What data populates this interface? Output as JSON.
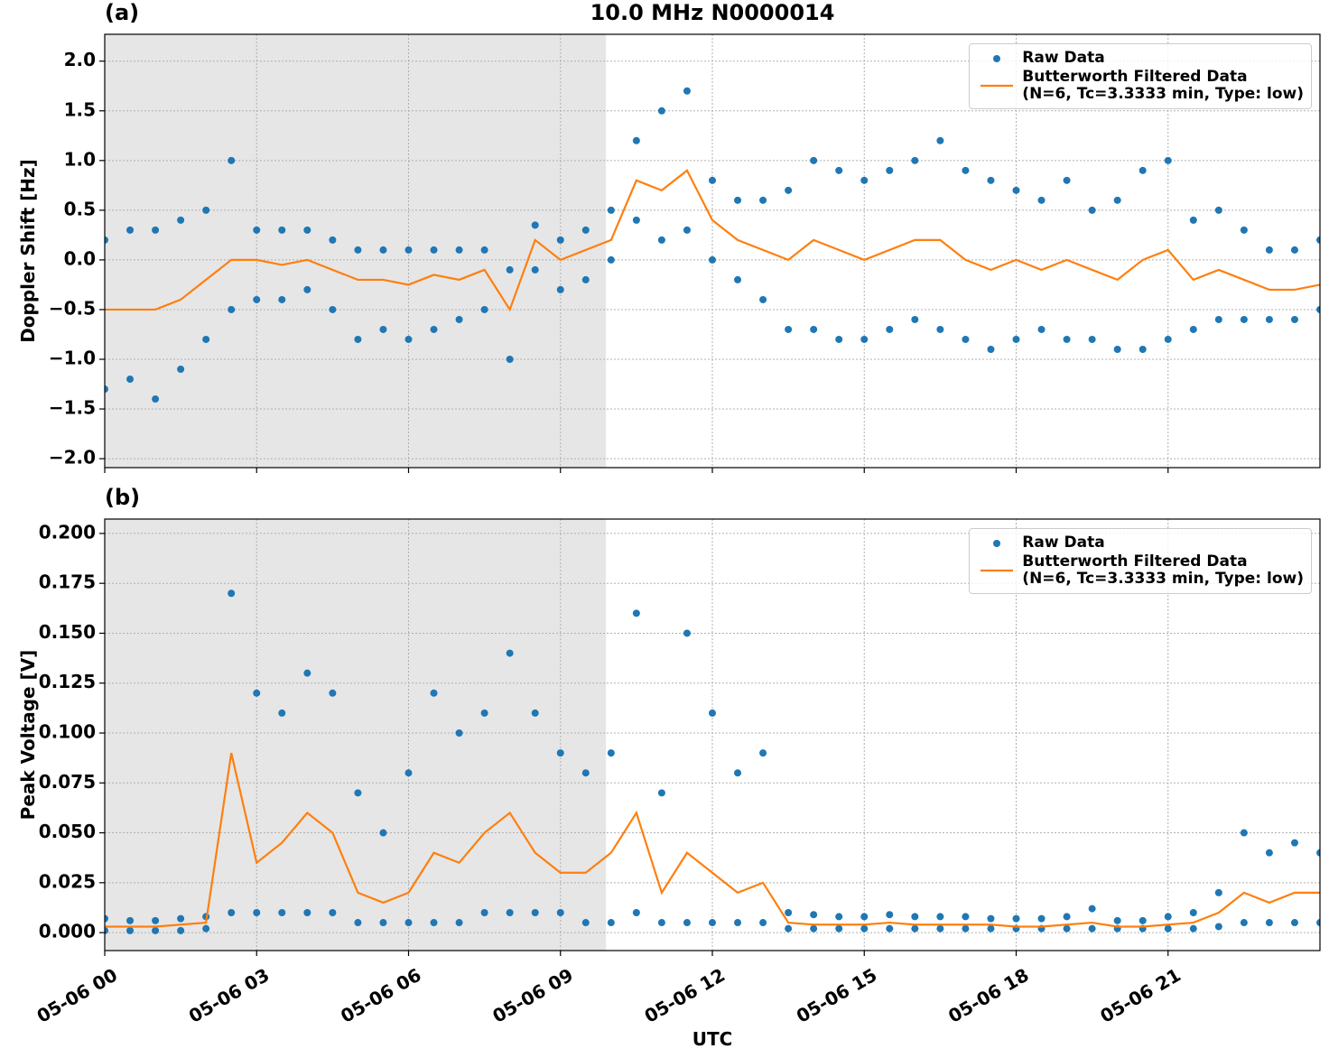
{
  "chart_data": [
    {
      "type": "scatter",
      "title": "10.0 MHz N0000014",
      "panel_label": "(a)",
      "y_label": "Doppler Shift [Hz]",
      "xlim": [
        0,
        24
      ],
      "xticks": [
        0,
        3,
        6,
        9,
        12,
        15,
        18,
        21
      ],
      "ylim": [
        -2.09,
        2.27
      ],
      "yticks": [
        {
          "value": -2.0,
          "label": "−2.0"
        },
        {
          "value": -1.5,
          "label": "−1.5"
        },
        {
          "value": -1.0,
          "label": "−1.0"
        },
        {
          "value": -0.5,
          "label": "−0.5"
        },
        {
          "value": 0.0,
          "label": "0.0"
        },
        {
          "value": 0.5,
          "label": "0.5"
        },
        {
          "value": 1.0,
          "label": "1.0"
        },
        {
          "value": 1.5,
          "label": "1.5"
        },
        {
          "value": 2.0,
          "label": "2.0"
        }
      ],
      "grid": true,
      "legend": "upper right",
      "shaded_span": [
        0,
        9.9
      ],
      "series": [
        {
          "name": "Raw Data",
          "color": "#1f77b4",
          "kind": "points",
          "x": [
            0,
            0,
            0.5,
            0.5,
            1,
            1,
            1.5,
            1.5,
            2,
            2,
            2.5,
            2.5,
            3,
            3,
            3.5,
            3.5,
            4,
            4,
            4.5,
            4.5,
            5,
            5,
            5.5,
            5.5,
            6,
            6,
            6.5,
            6.5,
            7,
            7,
            7.5,
            7.5,
            8,
            8,
            8.5,
            8.5,
            9,
            9,
            9.5,
            9.5,
            10,
            10,
            10.5,
            10.5,
            11,
            11,
            11.5,
            11.5,
            12,
            12,
            12.5,
            12.5,
            13,
            13,
            13.5,
            13.5,
            14,
            14,
            14.5,
            14.5,
            15,
            15,
            15.5,
            15.5,
            16,
            16,
            16.5,
            16.5,
            17,
            17,
            17.5,
            17.5,
            18,
            18,
            18.5,
            18.5,
            19,
            19,
            19.5,
            19.5,
            20,
            20,
            20.5,
            20.5,
            21,
            21,
            21.5,
            21.5,
            22,
            22,
            22.5,
            22.5,
            23,
            23,
            23.5,
            23.5,
            24,
            24
          ],
          "values": [
            0.2,
            -1.3,
            0.3,
            -1.2,
            0.3,
            -1.4,
            0.4,
            -1.1,
            0.5,
            -0.8,
            1.0,
            -0.5,
            0.3,
            -0.4,
            0.3,
            -0.4,
            0.3,
            -0.3,
            0.2,
            -0.5,
            0.1,
            -0.8,
            0.1,
            -0.7,
            0.1,
            -0.8,
            0.1,
            -0.7,
            0.1,
            -0.6,
            0.1,
            -0.5,
            -0.1,
            -1.0,
            0.35,
            -0.1,
            0.2,
            -0.3,
            0.3,
            -0.2,
            0.5,
            0.0,
            1.2,
            0.4,
            1.5,
            0.2,
            1.7,
            0.3,
            0.8,
            0.0,
            0.6,
            -0.2,
            0.6,
            -0.4,
            0.7,
            -0.7,
            1.0,
            -0.7,
            0.9,
            -0.8,
            0.8,
            -0.8,
            0.9,
            -0.7,
            1.0,
            -0.6,
            1.2,
            -0.7,
            0.9,
            -0.8,
            0.8,
            -0.9,
            0.7,
            -0.8,
            0.6,
            -0.7,
            0.8,
            -0.8,
            0.5,
            -0.8,
            0.6,
            -0.9,
            0.9,
            -0.9,
            1.0,
            -0.8,
            0.4,
            -0.7,
            0.5,
            -0.6,
            0.3,
            -0.6,
            0.1,
            -0.6,
            0.1,
            -0.6,
            0.2,
            -0.5
          ]
        },
        {
          "name": "Butterworth Filtered Data\n(N=6, Tc=3.3333 min, Type: low)",
          "color": "#ff7f0e",
          "kind": "line",
          "x": [
            0,
            0.5,
            1,
            1.5,
            2,
            2.5,
            3,
            3.5,
            4,
            4.5,
            5,
            5.5,
            6,
            6.5,
            7,
            7.5,
            8,
            8.5,
            9,
            9.5,
            10,
            10.5,
            11,
            11.5,
            12,
            12.5,
            13,
            13.5,
            14,
            14.5,
            15,
            15.5,
            16,
            16.5,
            17,
            17.5,
            18,
            18.5,
            19,
            19.5,
            20,
            20.5,
            21,
            21.5,
            22,
            22.5,
            23,
            23.5,
            24
          ],
          "values": [
            -0.5,
            -0.5,
            -0.5,
            -0.4,
            -0.2,
            0.0,
            0.0,
            -0.05,
            0.0,
            -0.1,
            -0.2,
            -0.2,
            -0.25,
            -0.15,
            -0.2,
            -0.1,
            -0.5,
            0.2,
            0.0,
            0.1,
            0.2,
            0.8,
            0.7,
            0.9,
            0.4,
            0.2,
            0.1,
            0.0,
            0.2,
            0.1,
            0.0,
            0.1,
            0.2,
            0.2,
            0.0,
            -0.1,
            0.0,
            -0.1,
            0.0,
            -0.1,
            -0.2,
            0.0,
            0.1,
            -0.2,
            -0.1,
            -0.2,
            -0.3,
            -0.3,
            -0.25
          ]
        }
      ]
    },
    {
      "type": "scatter",
      "panel_label": "(b)",
      "y_label": "Peak Voltage [V]",
      "x_label": "UTC",
      "xlim": [
        0,
        24
      ],
      "xticks": [
        {
          "value": 0,
          "label": "05-06 00"
        },
        {
          "value": 3,
          "label": "05-06 03"
        },
        {
          "value": 6,
          "label": "05-06 06"
        },
        {
          "value": 9,
          "label": "05-06 09"
        },
        {
          "value": 12,
          "label": "05-06 12"
        },
        {
          "value": 15,
          "label": "05-06 15"
        },
        {
          "value": 18,
          "label": "05-06 18"
        },
        {
          "value": 21,
          "label": "05-06 21"
        }
      ],
      "ylim": [
        -0.009,
        0.2072
      ],
      "yticks": [
        {
          "value": 0,
          "label": "0.000"
        },
        {
          "value": 0.025,
          "label": "0.025"
        },
        {
          "value": 0.05,
          "label": "0.050"
        },
        {
          "value": 0.075,
          "label": "0.075"
        },
        {
          "value": 0.1,
          "label": "0.100"
        },
        {
          "value": 0.125,
          "label": "0.125"
        },
        {
          "value": 0.15,
          "label": "0.150"
        },
        {
          "value": 0.175,
          "label": "0.175"
        },
        {
          "value": 0.2,
          "label": "0.200"
        }
      ],
      "grid": true,
      "legend": "upper right",
      "shaded_span": [
        0,
        9.9
      ],
      "series": [
        {
          "name": "Raw Data",
          "color": "#1f77b4",
          "kind": "points",
          "x": [
            0,
            0,
            0.5,
            0.5,
            1,
            1,
            1.5,
            1.5,
            2,
            2,
            2.5,
            2.5,
            3,
            3,
            3.5,
            3.5,
            4,
            4,
            4.5,
            4.5,
            5,
            5,
            5.5,
            5.5,
            6,
            6,
            6.5,
            6.5,
            7,
            7,
            7.5,
            7.5,
            8,
            8,
            8.5,
            8.5,
            9,
            9,
            9.5,
            9.5,
            10,
            10,
            10.5,
            10.5,
            11,
            11,
            11.5,
            11.5,
            12,
            12,
            12.5,
            12.5,
            13,
            13,
            13.5,
            13.5,
            14,
            14,
            14.5,
            14.5,
            15,
            15,
            15.5,
            15.5,
            16,
            16,
            16.5,
            16.5,
            17,
            17,
            17.5,
            17.5,
            18,
            18,
            18.5,
            18.5,
            19,
            19,
            19.5,
            19.5,
            20,
            20,
            20.5,
            20.5,
            21,
            21,
            21.5,
            21.5,
            22,
            22,
            22.5,
            22.5,
            23,
            23,
            23.5,
            23.5,
            24,
            24
          ],
          "values": [
            0.007,
            0.001,
            0.006,
            0.001,
            0.006,
            0.001,
            0.007,
            0.001,
            0.008,
            0.002,
            0.17,
            0.01,
            0.12,
            0.01,
            0.11,
            0.01,
            0.13,
            0.01,
            0.12,
            0.01,
            0.07,
            0.005,
            0.05,
            0.005,
            0.08,
            0.005,
            0.12,
            0.005,
            0.1,
            0.005,
            0.11,
            0.01,
            0.14,
            0.01,
            0.11,
            0.01,
            0.09,
            0.01,
            0.08,
            0.005,
            0.09,
            0.005,
            0.16,
            0.01,
            0.07,
            0.005,
            0.15,
            0.005,
            0.11,
            0.005,
            0.08,
            0.005,
            0.09,
            0.005,
            0.01,
            0.002,
            0.009,
            0.002,
            0.008,
            0.002,
            0.008,
            0.002,
            0.009,
            0.002,
            0.008,
            0.002,
            0.008,
            0.002,
            0.008,
            0.002,
            0.007,
            0.002,
            0.007,
            0.002,
            0.007,
            0.002,
            0.008,
            0.002,
            0.012,
            0.002,
            0.006,
            0.002,
            0.006,
            0.002,
            0.008,
            0.002,
            0.01,
            0.002,
            0.02,
            0.003,
            0.05,
            0.005,
            0.04,
            0.005,
            0.045,
            0.005,
            0.04,
            0.005
          ]
        },
        {
          "name": "Butterworth Filtered Data\n(N=6, Tc=3.3333 min, Type: low)",
          "color": "#ff7f0e",
          "kind": "line",
          "x": [
            0,
            0.5,
            1,
            1.5,
            2,
            2.5,
            3,
            3.5,
            4,
            4.5,
            5,
            5.5,
            6,
            6.5,
            7,
            7.5,
            8,
            8.5,
            9,
            9.5,
            10,
            10.5,
            11,
            11.5,
            12,
            12.5,
            13,
            13.5,
            14,
            14.5,
            15,
            15.5,
            16,
            16.5,
            17,
            17.5,
            18,
            18.5,
            19,
            19.5,
            20,
            20.5,
            21,
            21.5,
            22,
            22.5,
            23,
            23.5,
            24
          ],
          "values": [
            0.003,
            0.003,
            0.003,
            0.004,
            0.005,
            0.09,
            0.035,
            0.045,
            0.06,
            0.05,
            0.02,
            0.015,
            0.02,
            0.04,
            0.035,
            0.05,
            0.06,
            0.04,
            0.03,
            0.03,
            0.04,
            0.06,
            0.02,
            0.04,
            0.03,
            0.02,
            0.025,
            0.005,
            0.004,
            0.004,
            0.004,
            0.005,
            0.004,
            0.004,
            0.004,
            0.004,
            0.003,
            0.003,
            0.004,
            0.005,
            0.003,
            0.003,
            0.004,
            0.005,
            0.01,
            0.02,
            0.015,
            0.02,
            0.02
          ]
        }
      ]
    }
  ]
}
